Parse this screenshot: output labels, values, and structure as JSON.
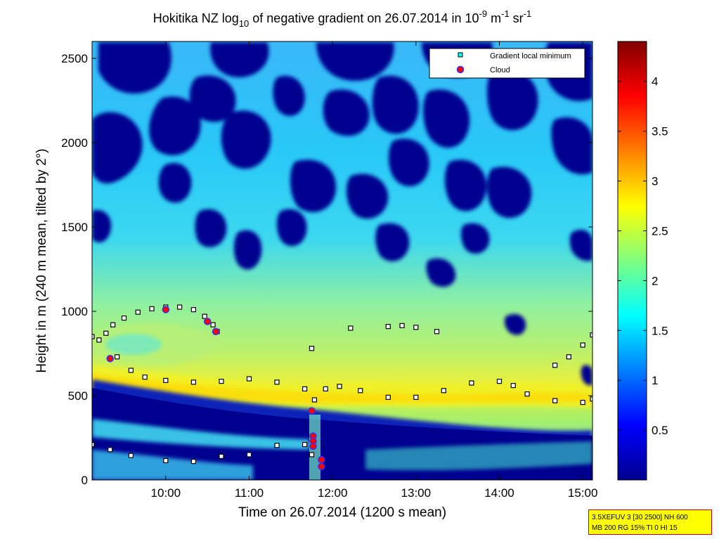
{
  "chart_data": {
    "type": "heatmap",
    "title": {
      "main": "Hokitika NZ log",
      "sub10": "10",
      "mid": " of negative gradient on 26.07.2014 in 10",
      "sup9": "-9",
      "m": " m",
      "sup1a": "-1",
      "sr": " sr",
      "sup1b": "-1"
    },
    "xlabel": "Time on 26.07.2014 (1200 s mean)",
    "ylabel": "Height in m (240 m mean, tilted by 2°)",
    "xlim": [
      "09:07",
      "15:07"
    ],
    "ylim": [
      0,
      2600
    ],
    "x_ticks": [
      "10:00",
      "11:00",
      "12:00",
      "13:00",
      "14:00",
      "15:00"
    ],
    "y_ticks": [
      "0",
      "500",
      "1000",
      "1500",
      "2000",
      "2500"
    ],
    "colorbar": {
      "colormap": "jet",
      "range": [
        0,
        4.4
      ],
      "ticks": [
        "0.5",
        "1",
        "1.5",
        "2",
        "2.5",
        "3",
        "3.5",
        "4"
      ]
    },
    "legend": {
      "placement": "top-right",
      "entries": [
        {
          "label": "Gradient local minimum",
          "marker": "square",
          "color": "#00ffff"
        },
        {
          "label": "Cloud",
          "marker": "circle",
          "color": "#ff0000"
        }
      ]
    },
    "series": [
      {
        "name": "Gradient local minimum",
        "values": [
          [
            "09:07",
            850
          ],
          [
            "09:12",
            830
          ],
          [
            "09:17",
            870
          ],
          [
            "09:22",
            920
          ],
          [
            "09:30",
            960
          ],
          [
            "09:40",
            995
          ],
          [
            "09:50",
            1015
          ],
          [
            "10:00",
            1025
          ],
          [
            "10:10",
            1025
          ],
          [
            "10:20",
            1010
          ],
          [
            "10:28",
            970
          ],
          [
            "10:34",
            920
          ],
          [
            "10:37",
            880
          ],
          [
            "09:25",
            730
          ],
          [
            "09:35",
            650
          ],
          [
            "09:45",
            610
          ],
          [
            "10:00",
            590
          ],
          [
            "10:20",
            580
          ],
          [
            "10:40",
            585
          ],
          [
            "11:00",
            600
          ],
          [
            "11:20",
            580
          ],
          [
            "11:40",
            540
          ],
          [
            "11:47",
            475
          ],
          [
            "11:55",
            540
          ],
          [
            "12:05",
            555
          ],
          [
            "12:20",
            530
          ],
          [
            "12:40",
            490
          ],
          [
            "13:00",
            490
          ],
          [
            "13:20",
            530
          ],
          [
            "13:40",
            575
          ],
          [
            "14:00",
            585
          ],
          [
            "14:10",
            560
          ],
          [
            "14:20",
            510
          ],
          [
            "14:40",
            470
          ],
          [
            "15:00",
            460
          ],
          [
            "15:07",
            480
          ],
          [
            "14:40",
            680
          ],
          [
            "14:50",
            730
          ],
          [
            "15:00",
            800
          ],
          [
            "15:07",
            860
          ],
          [
            "11:45",
            780
          ],
          [
            "12:13",
            900
          ],
          [
            "12:40",
            910
          ],
          [
            "12:50",
            915
          ],
          [
            "13:00",
            905
          ],
          [
            "13:15",
            880
          ],
          [
            "09:07",
            210
          ],
          [
            "09:20",
            180
          ],
          [
            "09:35",
            145
          ],
          [
            "10:00",
            115
          ],
          [
            "10:20",
            110
          ],
          [
            "10:40",
            140
          ],
          [
            "11:00",
            150
          ],
          [
            "11:20",
            205
          ],
          [
            "11:40",
            210
          ],
          [
            "11:45",
            150
          ]
        ]
      },
      {
        "name": "Cloud",
        "values": [
          [
            "09:20",
            720
          ],
          [
            "10:00",
            1010
          ],
          [
            "10:30",
            940
          ],
          [
            "10:36",
            880
          ],
          [
            "11:45",
            410
          ],
          [
            "11:46",
            260
          ],
          [
            "11:46",
            230
          ],
          [
            "11:46",
            200
          ],
          [
            "11:52",
            120
          ],
          [
            "11:52",
            80
          ]
        ]
      }
    ]
  },
  "info_box": {
    "line1": "3.5XEFUV 3 [30 2500] NH 600",
    "line2": "MB 200 RG 15% TI 0 HI 15"
  }
}
